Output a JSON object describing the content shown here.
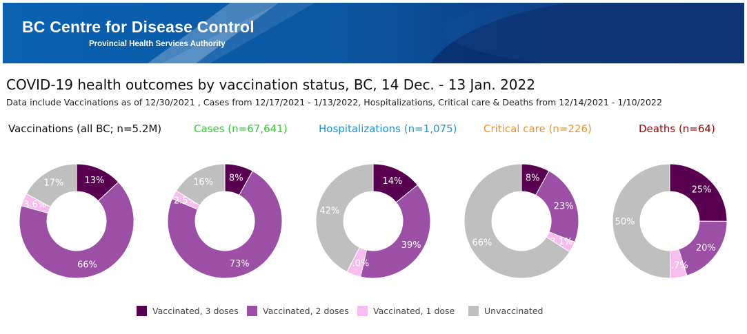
{
  "header": {
    "org_name": "BC Centre for Disease Control",
    "sub_org": "Provincial Health Services Authority"
  },
  "title": "COVID-19 health outcomes by vaccination status, BC,  14 Dec. - 13 Jan. 2022",
  "subtitle": "Data include Vaccinations as of 12/30/2021 , Cases  from  12/17/2021 - 1/13/2022, Hospitalizations, Critical care & Deaths from 12/14/2021 - 1/10/2022",
  "colors": {
    "vaccinated_3": "#5a0050",
    "vaccinated_2": "#9b4fa5",
    "vaccinated_1": "#f7bdef",
    "unvaccinated": "#bfbfbf"
  },
  "legend": [
    {
      "label": "Vaccinated, 3 doses",
      "color": "#5a0050"
    },
    {
      "label": "Vaccinated, 2 doses",
      "color": "#9b4fa5"
    },
    {
      "label": "Vaccinated, 1 dose",
      "color": "#f7bdef"
    },
    {
      "label": "Unvaccinated",
      "color": "#bfbfbf"
    }
  ],
  "chart_data": [
    {
      "type": "pie",
      "title": "Vaccinations (all BC; n=5.2M)",
      "title_color": "#111111",
      "categories": [
        "Vaccinated, 3 doses",
        "Vaccinated, 2 doses",
        "Vaccinated, 1 dose",
        "Unvaccinated"
      ],
      "values": [
        13,
        66,
        3.6,
        17
      ],
      "labels": [
        "13%",
        "66%",
        "3.6%",
        "17%"
      ]
    },
    {
      "type": "pie",
      "title": "Cases (n=67,641)",
      "title_color": "#33cc33",
      "categories": [
        "Vaccinated, 3 doses",
        "Vaccinated, 2 doses",
        "Vaccinated, 1 dose",
        "Unvaccinated"
      ],
      "values": [
        8,
        73,
        2.5,
        16
      ],
      "labels": [
        "8%",
        "73%",
        "2.5%",
        "16%"
      ]
    },
    {
      "type": "pie",
      "title": "Hospitalizations (n=1,075)",
      "title_color": "#1a96d4",
      "categories": [
        "Vaccinated, 3 doses",
        "Vaccinated, 2 doses",
        "Vaccinated, 1 dose",
        "Unvaccinated"
      ],
      "values": [
        14,
        39,
        4.0,
        42
      ],
      "labels": [
        "14%",
        "39%",
        "4.0%",
        "42%"
      ]
    },
    {
      "type": "pie",
      "title": "Critical care (n=226)",
      "title_color": "#f0902a",
      "categories": [
        "Vaccinated, 3 doses",
        "Vaccinated, 2 doses",
        "Vaccinated, 1 dose",
        "Unvaccinated"
      ],
      "values": [
        8,
        23,
        3.1,
        66
      ],
      "labels": [
        "8%",
        "23%",
        "3.1%",
        "66%"
      ]
    },
    {
      "type": "pie",
      "title": "Deaths (n=64)",
      "title_color": "#a00000",
      "categories": [
        "Vaccinated, 3 doses",
        "Vaccinated, 2 doses",
        "Vaccinated, 1 dose",
        "Unvaccinated"
      ],
      "values": [
        25,
        20,
        4.7,
        50
      ],
      "labels": [
        "25%",
        "20%",
        "4.7%",
        "50%"
      ]
    }
  ]
}
